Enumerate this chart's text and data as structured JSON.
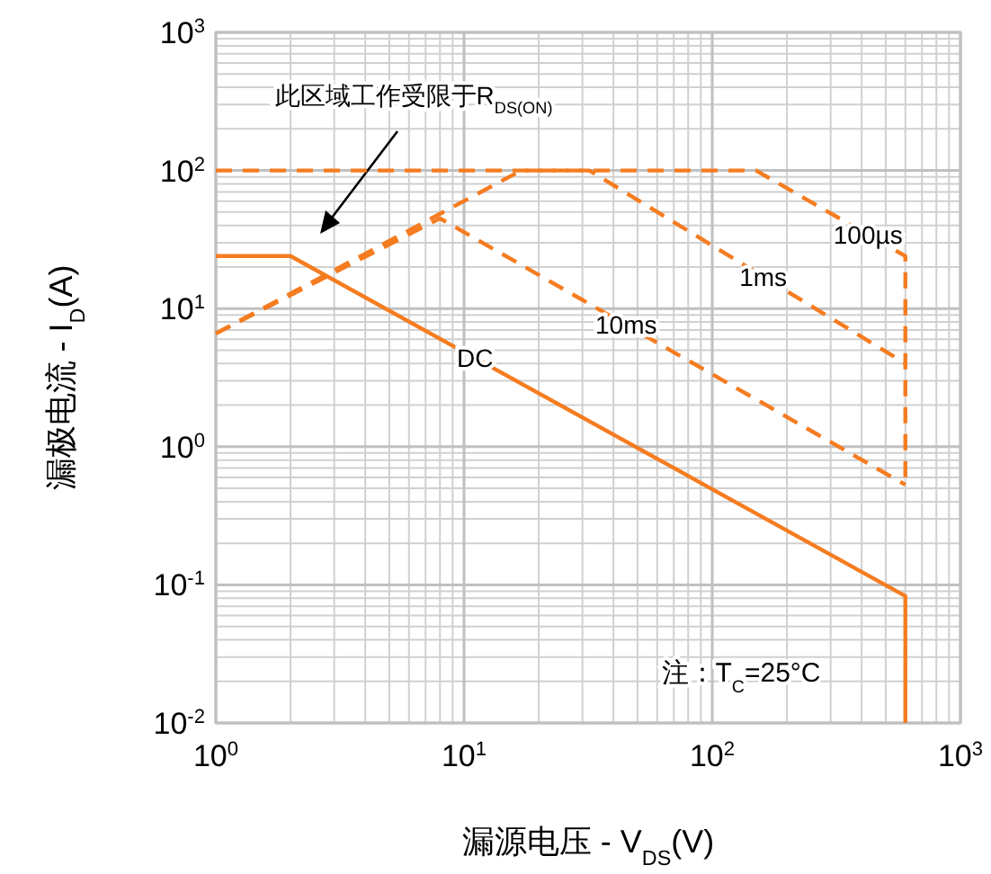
{
  "chart_data": {
    "type": "line",
    "xlabel": "漏源电压 - V$_{DS}$(V)",
    "ylabel": "漏极电流 - I$_{D}$(A)",
    "log": "xy",
    "grid": true,
    "xlim": [
      1,
      1000
    ],
    "ylim": [
      0.01,
      1000
    ],
    "xticks": [
      {
        "value": 1,
        "label": "10$^{0}$"
      },
      {
        "value": 10,
        "label": "10$^{1}$"
      },
      {
        "value": 100,
        "label": "10$^{2}$"
      },
      {
        "value": 1000,
        "label": "10$^{3}$"
      }
    ],
    "yticks": [
      {
        "value": 0.01,
        "label": "10$^{-2}$"
      },
      {
        "value": 0.1,
        "label": "10$^{-1}$"
      },
      {
        "value": 1,
        "label": "10$^{0}$"
      },
      {
        "value": 10,
        "label": "10$^{1}$"
      },
      {
        "value": 100,
        "label": "10$^{2}$"
      },
      {
        "value": 1000,
        "label": "10$^{3}$"
      }
    ],
    "series": [
      {
        "name": "100µs",
        "color": "#f57c20",
        "line_style": "dashed",
        "x": [
          1,
          150,
          600,
          600
        ],
        "values": [
          100,
          100,
          24,
          0.53
        ]
      },
      {
        "name": "1ms",
        "color": "#f57c20",
        "line_style": "dashed",
        "x": [
          1,
          17,
          32,
          600
        ],
        "values": [
          6.6,
          100,
          100,
          4.0
        ]
      },
      {
        "name": "10ms",
        "color": "#f57c20",
        "line_style": "dashed",
        "x": [
          1,
          8,
          600
        ],
        "values": [
          6.6,
          45,
          0.53
        ]
      },
      {
        "name": "DC",
        "color": "#f57c20",
        "line_style": "solid",
        "x": [
          1,
          2,
          600,
          600
        ],
        "values": [
          24,
          24,
          0.083,
          0.01
        ]
      }
    ],
    "annotations": [
      "此区域工作受限于R$_{DS(ON)}$",
      "注：T$_{C}$=25°C"
    ]
  }
}
